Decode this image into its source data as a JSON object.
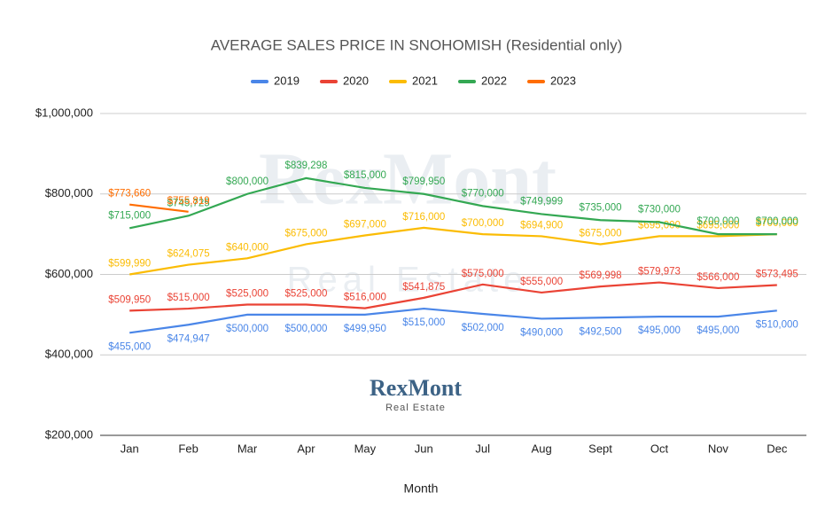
{
  "chart_data": {
    "type": "line",
    "title": "AVERAGE SALES PRICE IN SNOHOMISH (Residential only)",
    "x_label": "Month",
    "categories": [
      "Jan",
      "Feb",
      "Mar",
      "Apr",
      "May",
      "Jun",
      "Jul",
      "Aug",
      "Sept",
      "Oct",
      "Nov",
      "Dec"
    ],
    "ylim": [
      200000,
      1000000
    ],
    "yticks": [
      {
        "value": 200000,
        "label": "$200,000"
      },
      {
        "value": 400000,
        "label": "$400,000"
      },
      {
        "value": 600000,
        "label": "$600,000"
      },
      {
        "value": 800000,
        "label": "$800,000"
      },
      {
        "value": 1000000,
        "label": "$1,000,000"
      }
    ],
    "grid": true,
    "legend": "top",
    "series": [
      {
        "name": "2019",
        "color": "#4a86e8",
        "values": [
          455000,
          474947,
          500000,
          500000,
          499950,
          515000,
          502000,
          490000,
          492500,
          495000,
          495000,
          510000
        ],
        "value_labels": [
          "$455,000",
          "$474,947",
          "$500,000",
          "$500,000",
          "$499,950",
          "$515,000",
          "$502,000",
          "$490,000",
          "$492,500",
          "$495,000",
          "$495,000",
          "$510,000"
        ]
      },
      {
        "name": "2020",
        "color": "#ea4335",
        "values": [
          509950,
          515000,
          525000,
          525000,
          516000,
          541875,
          575000,
          555000,
          569998,
          579973,
          566000,
          573495
        ],
        "value_labels": [
          "$509,950",
          "$515,000",
          "$525,000",
          "$525,000",
          "$516,000",
          "$541,875",
          "$575,000",
          "$555,000",
          "$569,998",
          "$579,973",
          "$566,000",
          "$573,495"
        ]
      },
      {
        "name": "2021",
        "color": "#fbbc04",
        "values": [
          599990,
          624075,
          640000,
          675000,
          697000,
          716000,
          700000,
          694900,
          675000,
          695000,
          695000,
          700000
        ],
        "value_labels": [
          "$599,990",
          "$624,075",
          "$640,000",
          "$675,000",
          "$697,000",
          "$716,000",
          "$700,000",
          "$694,900",
          "$675,000",
          "$695,000",
          "$695,000",
          "$700,000"
        ]
      },
      {
        "name": "2022",
        "color": "#34a853",
        "values": [
          715000,
          745725,
          800000,
          839298,
          815000,
          799950,
          770000,
          749999,
          735000,
          730000,
          700000,
          700000
        ],
        "value_labels": [
          "$715,000",
          "$745,725",
          "$800,000",
          "$839,298",
          "$815,000",
          "$799,950",
          "$770,000",
          "$749,999",
          "$735,000",
          "$730,000",
          "$700,000",
          "$700,000"
        ]
      },
      {
        "name": "2023",
        "color": "#ff6d01",
        "values": [
          773660,
          755819,
          null,
          null,
          null,
          null,
          null,
          null,
          null,
          null,
          null,
          null
        ],
        "value_labels": [
          "$773,660",
          "$755,819",
          null,
          null,
          null,
          null,
          null,
          null,
          null,
          null,
          null,
          null
        ]
      }
    ],
    "annotations": [
      "RexMont",
      "Real Estate",
      "RexMont",
      "Real Estate"
    ]
  }
}
